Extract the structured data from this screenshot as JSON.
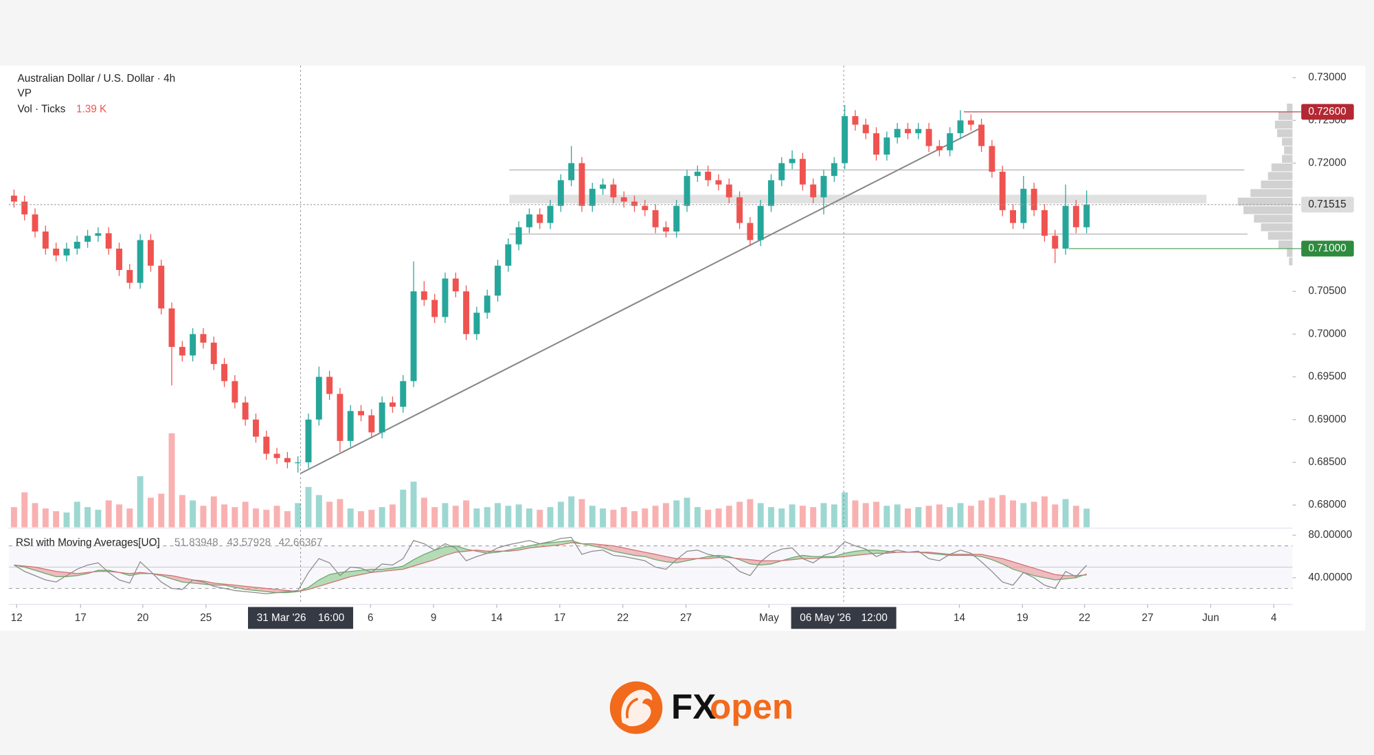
{
  "chart_data": {
    "type": "candlestick",
    "title": "Australian Dollar / U.S. Dollar · 4h",
    "indicator": "VP",
    "up_color": "#26a69a",
    "down_color": "#ef5350",
    "xlim": [
      -0.5,
      121.58
    ],
    "ylim": [
      0.6774,
      0.7314
    ],
    "yticks": [
      {
        "value": 0.73,
        "label": "0.73000"
      },
      {
        "value": 0.725,
        "label": "0.72500"
      },
      {
        "value": 0.72,
        "label": "0.72000"
      },
      {
        "value": 0.705,
        "label": "0.70500"
      },
      {
        "value": 0.7,
        "label": "0.70000"
      },
      {
        "value": 0.695,
        "label": "0.69500"
      },
      {
        "value": 0.69,
        "label": "0.69000"
      },
      {
        "value": 0.685,
        "label": "0.68500"
      },
      {
        "value": 0.68,
        "label": "0.68000"
      }
    ],
    "xticks": [
      {
        "value": 0.25,
        "label": "12"
      },
      {
        "value": 6.33,
        "label": "17"
      },
      {
        "value": 12.25,
        "label": "20"
      },
      {
        "value": 18.25,
        "label": "25"
      },
      {
        "value": 33.9,
        "label": "6"
      },
      {
        "value": 39.9,
        "label": "9"
      },
      {
        "value": 45.9,
        "label": "14"
      },
      {
        "value": 51.9,
        "label": "17"
      },
      {
        "value": 57.9,
        "label": "22"
      },
      {
        "value": 63.9,
        "label": "27"
      },
      {
        "value": 71.8,
        "label": "May"
      },
      {
        "value": 89.9,
        "label": "14"
      },
      {
        "value": 95.9,
        "label": "19"
      },
      {
        "value": 101.8,
        "label": "22"
      },
      {
        "value": 107.8,
        "label": "27"
      },
      {
        "value": 113.8,
        "label": "Jun"
      },
      {
        "value": 119.8,
        "label": "4"
      }
    ],
    "crosshairs": [
      {
        "x": 27.25,
        "label": "31 Mar '26",
        "time": "16:00"
      },
      {
        "x": 78.9,
        "label": "06 May '26",
        "time": "12:00"
      }
    ],
    "open": [
      0.7162,
      0.7155,
      0.714,
      0.712,
      0.71,
      0.7092,
      0.71,
      0.7108,
      0.7115,
      0.7118,
      0.71,
      0.7075,
      0.706,
      0.711,
      0.708,
      0.703,
      0.6985,
      0.6975,
      0.7,
      0.699,
      0.6965,
      0.6945,
      0.692,
      0.69,
      0.688,
      0.686,
      0.6855,
      0.685,
      0.685,
      0.69,
      0.695,
      0.693,
      0.6875,
      0.691,
      0.6905,
      0.6885,
      0.692,
      0.6915,
      0.6945,
      0.705,
      0.704,
      0.702,
      0.7065,
      0.705,
      0.7,
      0.7025,
      0.7045,
      0.708,
      0.7105,
      0.7125,
      0.714,
      0.713,
      0.715,
      0.718,
      0.72,
      0.715,
      0.717,
      0.7175,
      0.716,
      0.7155,
      0.715,
      0.7145,
      0.7125,
      0.712,
      0.715,
      0.7185,
      0.719,
      0.718,
      0.7175,
      0.716,
      0.713,
      0.711,
      0.715,
      0.718,
      0.72,
      0.7205,
      0.7175,
      0.716,
      0.7185,
      0.72,
      0.7255,
      0.7245,
      0.7235,
      0.721,
      0.723,
      0.724,
      0.7235,
      0.724,
      0.722,
      0.7215,
      0.7235,
      0.725,
      0.7245,
      0.722,
      0.719,
      0.7145,
      0.713,
      0.717,
      0.7145,
      0.7115,
      0.71,
      0.715,
      0.7125
    ],
    "high": [
      0.7169,
      0.7162,
      0.7147,
      0.7127,
      0.7107,
      0.7107,
      0.7115,
      0.7122,
      0.7125,
      0.7125,
      0.7107,
      0.7082,
      0.7117,
      0.7117,
      0.7087,
      0.7037,
      0.6992,
      0.7007,
      0.7007,
      0.6997,
      0.6972,
      0.6952,
      0.6927,
      0.6907,
      0.6887,
      0.6867,
      0.6862,
      0.6857,
      0.6907,
      0.6962,
      0.6957,
      0.6937,
      0.6917,
      0.6917,
      0.6912,
      0.6927,
      0.6927,
      0.6952,
      0.7085,
      0.7062,
      0.7047,
      0.7072,
      0.7072,
      0.7057,
      0.7032,
      0.7052,
      0.7087,
      0.7112,
      0.7132,
      0.7147,
      0.7147,
      0.7157,
      0.7187,
      0.722,
      0.7207,
      0.7177,
      0.7182,
      0.7182,
      0.7167,
      0.7162,
      0.7157,
      0.7152,
      0.7132,
      0.7157,
      0.7192,
      0.7197,
      0.7197,
      0.7187,
      0.7182,
      0.7167,
      0.7137,
      0.7157,
      0.7187,
      0.7207,
      0.7215,
      0.7212,
      0.7182,
      0.7192,
      0.7207,
      0.7268,
      0.7262,
      0.7252,
      0.7242,
      0.7237,
      0.7247,
      0.7247,
      0.7247,
      0.7247,
      0.7227,
      0.7242,
      0.7262,
      0.7257,
      0.7252,
      0.7227,
      0.7197,
      0.7152,
      0.7185,
      0.7177,
      0.7152,
      0.7122,
      0.7175,
      0.7157,
      0.7168
    ],
    "low": [
      0.7148,
      0.7133,
      0.7113,
      0.7093,
      0.7085,
      0.7085,
      0.7093,
      0.7101,
      0.7108,
      0.7093,
      0.7068,
      0.7053,
      0.7053,
      0.7073,
      0.7023,
      0.694,
      0.6968,
      0.6968,
      0.6983,
      0.6958,
      0.6938,
      0.6913,
      0.6893,
      0.6873,
      0.6853,
      0.6848,
      0.6843,
      0.6838,
      0.6843,
      0.6893,
      0.6923,
      0.6862,
      0.6868,
      0.6898,
      0.6878,
      0.6878,
      0.6908,
      0.6908,
      0.6938,
      0.7033,
      0.7013,
      0.7013,
      0.7043,
      0.6993,
      0.6993,
      0.7018,
      0.7038,
      0.7073,
      0.7098,
      0.7118,
      0.7123,
      0.7123,
      0.7143,
      0.7173,
      0.7143,
      0.7143,
      0.7163,
      0.7153,
      0.7148,
      0.7143,
      0.7138,
      0.7118,
      0.7113,
      0.7113,
      0.7143,
      0.7178,
      0.7173,
      0.7168,
      0.7153,
      0.7123,
      0.7103,
      0.7103,
      0.7143,
      0.7173,
      0.7193,
      0.7168,
      0.7153,
      0.714,
      0.7178,
      0.7193,
      0.7238,
      0.7228,
      0.7203,
      0.7203,
      0.7223,
      0.7228,
      0.7228,
      0.7213,
      0.7208,
      0.7208,
      0.7228,
      0.7238,
      0.7213,
      0.7183,
      0.7138,
      0.7123,
      0.7123,
      0.7138,
      0.7108,
      0.7083,
      0.7093,
      0.7118,
      0.7118
    ],
    "close": [
      0.7155,
      0.714,
      0.712,
      0.71,
      0.7092,
      0.71,
      0.7108,
      0.7115,
      0.7118,
      0.71,
      0.7075,
      0.706,
      0.711,
      0.708,
      0.703,
      0.6985,
      0.6975,
      0.7,
      0.699,
      0.6965,
      0.6945,
      0.692,
      0.69,
      0.688,
      0.686,
      0.6855,
      0.685,
      0.685,
      0.69,
      0.695,
      0.693,
      0.6875,
      0.691,
      0.6905,
      0.6885,
      0.692,
      0.6915,
      0.6945,
      0.705,
      0.704,
      0.702,
      0.7065,
      0.705,
      0.7,
      0.7025,
      0.7045,
      0.708,
      0.7105,
      0.7125,
      0.714,
      0.713,
      0.715,
      0.718,
      0.72,
      0.715,
      0.717,
      0.7175,
      0.716,
      0.7155,
      0.715,
      0.7145,
      0.7125,
      0.712,
      0.715,
      0.7185,
      0.719,
      0.718,
      0.7175,
      0.716,
      0.713,
      0.711,
      0.715,
      0.718,
      0.72,
      0.7205,
      0.7175,
      0.716,
      0.7185,
      0.72,
      0.7255,
      0.7245,
      0.7235,
      0.721,
      0.723,
      0.724,
      0.7235,
      0.724,
      0.722,
      0.7215,
      0.7235,
      0.725,
      0.7245,
      0.722,
      0.719,
      0.7145,
      0.713,
      0.717,
      0.7145,
      0.7115,
      0.71,
      0.715,
      0.7125,
      0.71515
    ],
    "price_labels": [
      {
        "price": 0.726,
        "label": "0.72600",
        "color": "#b22833",
        "from": 90.33
      },
      {
        "price": 0.71515,
        "label": "0.71515",
        "color": "#dcdcdc"
      },
      {
        "price": 0.71,
        "label": "0.71000",
        "color": "#2e8b3e",
        "from": 100.33
      }
    ],
    "horizontal_lines": [
      {
        "price": 0.7192,
        "from": 47.1,
        "to": 117.0
      },
      {
        "price": 0.7117,
        "from": 47.1,
        "to": 117.3
      }
    ],
    "zone": {
      "low": 0.7153,
      "high": 0.7163,
      "from": 47.1,
      "to": 113.4
    },
    "trendline": {
      "x": [
        27.25,
        92.17
      ],
      "price": [
        0.6837,
        0.72426
      ]
    },
    "volume_profile": {
      "lim": [
        0,
        100
      ],
      "prices": [
        0.7085,
        0.7095,
        0.7105,
        0.7115,
        0.7125,
        0.7135,
        0.7145,
        0.7155,
        0.7165,
        0.7175,
        0.7185,
        0.7195,
        0.7205,
        0.7215,
        0.7225,
        0.7235,
        0.7245,
        0.7255,
        0.7265
      ],
      "values": [
        5,
        8,
        20,
        35,
        45,
        55,
        70,
        78,
        60,
        45,
        35,
        30,
        15,
        12,
        15,
        22,
        25,
        20,
        8
      ]
    },
    "volume": {
      "title": "Vol · Ticks",
      "last_value_label": "1.39 K",
      "ylim": [
        0,
        7500
      ],
      "values": [
        1500,
        2600,
        1800,
        1400,
        1200,
        1100,
        1900,
        1500,
        1300,
        2000,
        1700,
        1400,
        3800,
        2200,
        2500,
        7000,
        2400,
        2000,
        1600,
        2300,
        1700,
        1500,
        1900,
        1400,
        1300,
        1600,
        1200,
        1800,
        3000,
        2400,
        1900,
        2100,
        1400,
        1200,
        1300,
        1500,
        1700,
        2800,
        3400,
        2200,
        1500,
        1800,
        1600,
        2000,
        1400,
        1500,
        1800,
        1600,
        1700,
        1400,
        1300,
        1500,
        1900,
        2300,
        2100,
        1600,
        1400,
        1300,
        1500,
        1200,
        1400,
        1600,
        1800,
        2000,
        2200,
        1500,
        1300,
        1400,
        1600,
        1900,
        2100,
        1800,
        1500,
        1400,
        1700,
        1600,
        1500,
        1800,
        1700,
        2600,
        2000,
        1800,
        1900,
        1600,
        1700,
        1400,
        1500,
        1600,
        1700,
        1500,
        1800,
        1600,
        2000,
        2200,
        2400,
        2000,
        1800,
        1900,
        2300,
        1700,
        2100,
        1600,
        1390
      ]
    },
    "rsi": {
      "title": "RSI with Moving Averages[UO]",
      "ylim": [
        15,
        85
      ],
      "yticks": [
        {
          "value": 80,
          "label": "80.00000"
        },
        {
          "value": 40,
          "label": "40.00000"
        }
      ],
      "levels": [
        70,
        50,
        30
      ],
      "values": [
        52,
        46,
        42,
        38,
        36,
        42,
        48,
        52,
        54,
        45,
        38,
        35,
        55,
        46,
        36,
        30,
        29,
        38,
        36,
        32,
        30,
        28,
        27,
        26,
        25,
        26,
        27,
        28,
        45,
        58,
        54,
        42,
        50,
        49,
        45,
        53,
        52,
        58,
        75,
        72,
        66,
        72,
        68,
        56,
        60,
        63,
        68,
        71,
        73,
        75,
        72,
        74,
        77,
        78,
        62,
        65,
        66,
        61,
        60,
        58,
        56,
        50,
        48,
        57,
        65,
        66,
        62,
        60,
        55,
        46,
        42,
        55,
        63,
        67,
        68,
        58,
        54,
        61,
        64,
        74,
        70,
        67,
        60,
        64,
        66,
        64,
        65,
        58,
        56,
        62,
        66,
        63,
        55,
        46,
        36,
        33,
        45,
        40,
        33,
        30,
        46,
        41,
        51.83948
      ],
      "fast": [
        52,
        50,
        47,
        44,
        41,
        41,
        42,
        44,
        47,
        47,
        45,
        42,
        44,
        44,
        42,
        39,
        36,
        35,
        34,
        33,
        33,
        31,
        29,
        28,
        27,
        26,
        26,
        27,
        31,
        38,
        43,
        45,
        46,
        47,
        48,
        48,
        49,
        51,
        57,
        62,
        66,
        69,
        70,
        67,
        65,
        63,
        64,
        66,
        68,
        70,
        72,
        73,
        74,
        75,
        72,
        70,
        68,
        65,
        63,
        61,
        60,
        57,
        55,
        54,
        56,
        58,
        60,
        61,
        60,
        57,
        53,
        52,
        53,
        56,
        59,
        61,
        60,
        60,
        60,
        63,
        65,
        66,
        66,
        65,
        64,
        64,
        64,
        63,
        62,
        61,
        61,
        61,
        60,
        57,
        53,
        48,
        45,
        42,
        40,
        38,
        39,
        40,
        43.57928
      ],
      "slow": [
        52,
        51,
        50,
        48,
        46,
        45,
        44,
        45,
        46,
        46,
        45,
        44,
        45,
        44,
        43,
        42,
        40,
        38,
        37,
        35,
        34,
        33,
        32,
        31,
        30,
        29,
        28,
        27,
        29,
        32,
        35,
        38,
        41,
        43,
        45,
        46,
        47,
        48,
        51,
        54,
        57,
        61,
        64,
        65,
        66,
        65,
        65,
        65,
        66,
        68,
        69,
        70,
        71,
        73,
        72,
        72,
        71,
        70,
        68,
        66,
        64,
        62,
        60,
        58,
        58,
        58,
        58,
        59,
        59,
        58,
        57,
        56,
        56,
        56,
        57,
        58,
        58,
        59,
        59,
        60,
        61,
        62,
        63,
        63,
        64,
        64,
        64,
        64,
        63,
        62,
        62,
        62,
        62,
        60,
        58,
        55,
        52,
        49,
        46,
        43,
        42,
        42,
        42.66367
      ]
    }
  },
  "footer": {
    "brand_fx": "FX",
    "brand_open": "open"
  }
}
